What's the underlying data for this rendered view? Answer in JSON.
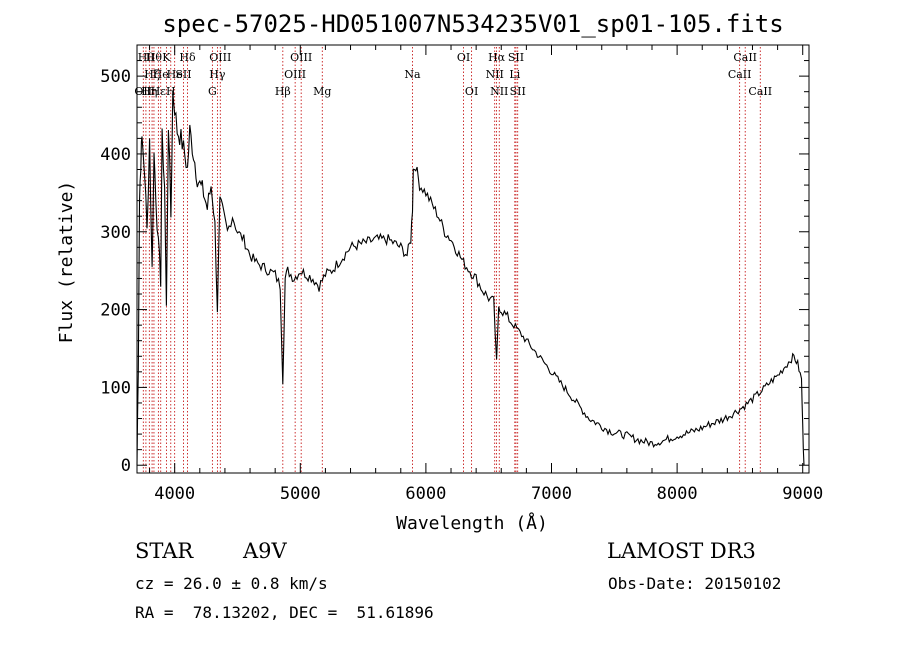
{
  "chart_data": {
    "type": "line",
    "title": "spec-57025-HD051007N534235V01_sp01-105.fits",
    "xlabel": "Wavelength (Å)",
    "ylabel": "Flux (relative)",
    "xlim": [
      3700,
      9050
    ],
    "ylim": [
      -10,
      540
    ],
    "x_ticks": [
      4000,
      5000,
      6000,
      7000,
      8000,
      9000
    ],
    "y_ticks": [
      0,
      100,
      200,
      300,
      400,
      500
    ],
    "grid": false,
    "series": [
      {
        "x": [
          3700,
          3710,
          3720,
          3730,
          3740,
          3760,
          3780,
          3800,
          3820,
          3835,
          3850,
          3870,
          3889,
          3900,
          3920,
          3934,
          3950,
          3970,
          3985,
          4000,
          4020,
          4050,
          4080,
          4102,
          4120,
          4150,
          4180,
          4200,
          4230,
          4260,
          4290,
          4320,
          4340,
          4360,
          4380,
          4420,
          4460,
          4500,
          4550,
          4600,
          4650,
          4700,
          4750,
          4800,
          4840,
          4861,
          4880,
          4900,
          4950,
          5000,
          5050,
          5100,
          5150,
          5200,
          5250,
          5300,
          5400,
          5500,
          5600,
          5700,
          5800,
          5850,
          5880,
          5893,
          5900,
          5920,
          5950,
          6000,
          6050,
          6100,
          6150,
          6200,
          6250,
          6300,
          6350,
          6400,
          6450,
          6500,
          6540,
          6563,
          6580,
          6600,
          6650,
          6700,
          6750,
          6800,
          6850,
          6900,
          6950,
          7000,
          7050,
          7100,
          7150,
          7200,
          7250,
          7300,
          7350,
          7400,
          7450,
          7500,
          7550,
          7600,
          7650,
          7700,
          7750,
          7800,
          7850,
          7900,
          7950,
          8000,
          8050,
          8100,
          8150,
          8200,
          8250,
          8300,
          8350,
          8400,
          8450,
          8500,
          8550,
          8600,
          8650,
          8700,
          8750,
          8800,
          8850,
          8900,
          8930,
          8960,
          8990,
          9000,
          9010
        ],
        "y": [
          0,
          130,
          340,
          390,
          420,
          380,
          300,
          420,
          250,
          400,
          350,
          280,
          240,
          420,
          360,
          200,
          440,
          320,
          480,
          460,
          430,
          420,
          400,
          380,
          430,
          400,
          370,
          360,
          350,
          330,
          360,
          310,
          200,
          340,
          330,
          300,
          320,
          300,
          290,
          270,
          260,
          255,
          250,
          245,
          230,
          110,
          240,
          250,
          240,
          250,
          245,
          240,
          230,
          245,
          250,
          260,
          280,
          285,
          290,
          290,
          280,
          270,
          290,
          330,
          380,
          385,
          360,
          350,
          335,
          320,
          300,
          290,
          275,
          260,
          250,
          240,
          225,
          215,
          210,
          130,
          205,
          200,
          190,
          180,
          170,
          160,
          150,
          140,
          130,
          120,
          110,
          100,
          90,
          80,
          70,
          60,
          55,
          50,
          45,
          42,
          40,
          38,
          35,
          32,
          30,
          28,
          30,
          32,
          35,
          38,
          40,
          42,
          45,
          48,
          52,
          55,
          58,
          62,
          67,
          72,
          78,
          85,
          92,
          100,
          108,
          115,
          125,
          135,
          140,
          130,
          110,
          50,
          0
        ]
      }
    ],
    "lines": [
      {
        "x": 3750,
        "label": "OII",
        "row": 3
      },
      {
        "x": 3771,
        "label": "Hθ",
        "row": 1
      },
      {
        "x": 3798,
        "label": "Hη",
        "row": 3
      },
      {
        "x": 3820,
        "label": "Hζ",
        "row": 2
      },
      {
        "x": 3835,
        "label": "Hθ",
        "row": 1
      },
      {
        "x": 3870,
        "label": "Hε",
        "row": 3
      },
      {
        "x": 3889,
        "label": "He",
        "row": 2
      },
      {
        "x": 3934,
        "label": "K",
        "row": 1
      },
      {
        "x": 3969,
        "label": "H",
        "row": 3
      },
      {
        "x": 4000,
        "label": "He",
        "row": 2
      },
      {
        "x": 4070,
        "label": "SII",
        "row": 2
      },
      {
        "x": 4102,
        "label": "Hδ",
        "row": 1
      },
      {
        "x": 4300,
        "label": "G",
        "row": 3
      },
      {
        "x": 4340,
        "label": "Hγ",
        "row": 2
      },
      {
        "x": 4363,
        "label": "OIII",
        "row": 1
      },
      {
        "x": 4861,
        "label": "Hβ",
        "row": 3
      },
      {
        "x": 4959,
        "label": "OIII",
        "row": 2
      },
      {
        "x": 5007,
        "label": "OIII",
        "row": 1
      },
      {
        "x": 5175,
        "label": "Mg",
        "row": 3
      },
      {
        "x": 5893,
        "label": "Na",
        "row": 2
      },
      {
        "x": 6300,
        "label": "OI",
        "row": 1
      },
      {
        "x": 6364,
        "label": "OI",
        "row": 3
      },
      {
        "x": 6548,
        "label": "NII",
        "row": 2
      },
      {
        "x": 6563,
        "label": "Hα",
        "row": 1
      },
      {
        "x": 6584,
        "label": "NII",
        "row": 3
      },
      {
        "x": 6708,
        "label": "Li",
        "row": 2
      },
      {
        "x": 6717,
        "label": "SII",
        "row": 1
      },
      {
        "x": 6731,
        "label": "SII",
        "row": 3
      },
      {
        "x": 8498,
        "label": "CaII",
        "row": 2
      },
      {
        "x": 8542,
        "label": "CaII",
        "row": 1
      },
      {
        "x": 8662,
        "label": "CaII",
        "row": 3
      }
    ]
  },
  "info": {
    "object_class": "STAR",
    "subclass": "A9V",
    "survey": "LAMOST DR3",
    "cz": "cz = 26.0 ± 0.8 km/s",
    "obs_date": "Obs-Date: 20150102",
    "coords": "RA =  78.13202, DEC =  51.61896"
  }
}
